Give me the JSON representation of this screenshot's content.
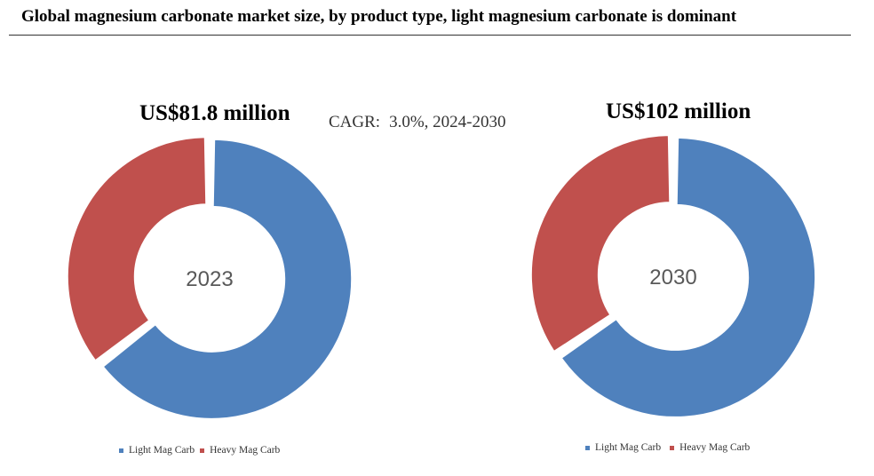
{
  "title": "Global magnesium carbonate market size, by product type, light magnesium carbonate is dominant",
  "cagr": {
    "label": "CAGR:",
    "value": "3.0%, 2024-2030"
  },
  "colors": {
    "light": "#4f81bd",
    "heavy": "#c0504d",
    "center_text": "#595959"
  },
  "chart_data": [
    {
      "type": "pie",
      "donut": true,
      "year": "2023",
      "total_label": "US$81.8 million",
      "categories": [
        "Light Mag Carb",
        "Heavy Mag Carb"
      ],
      "values": [
        64.5,
        35.5
      ],
      "colors": [
        "#4f81bd",
        "#c0504d"
      ],
      "legend": [
        "Light Mag Carb",
        "Heavy Mag Carb"
      ],
      "legend_position": "bottom"
    },
    {
      "type": "pie",
      "donut": true,
      "year": "2030",
      "total_label": "US$102 million",
      "categories": [
        "Light Mag Carb",
        "Heavy Mag Carb"
      ],
      "values": [
        65.5,
        34.5
      ],
      "colors": [
        "#4f81bd",
        "#c0504d"
      ],
      "legend": [
        "Light Mag Carb",
        "Heavy Mag Carb"
      ],
      "legend_position": "bottom"
    }
  ]
}
